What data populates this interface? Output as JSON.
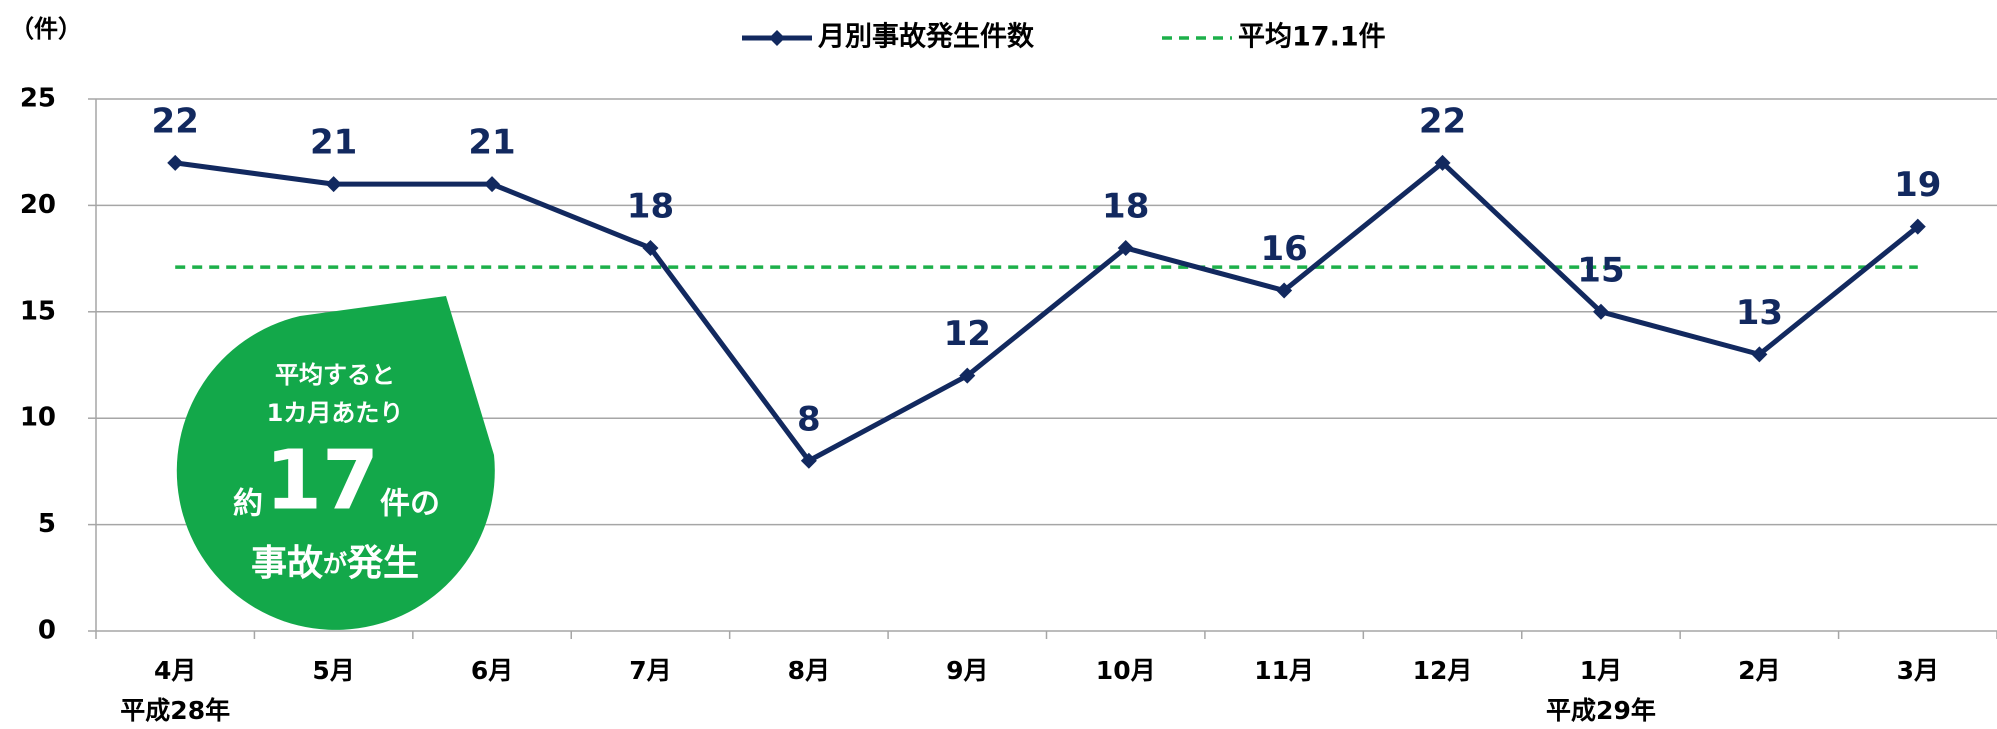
{
  "chart_data": {
    "type": "line",
    "y_label": "（件）",
    "categories": [
      "4月",
      "5月",
      "6月",
      "7月",
      "8月",
      "9月",
      "10月",
      "11月",
      "12月",
      "1月",
      "2月",
      "3月"
    ],
    "x_sublabels": [
      "平成28年",
      null,
      null,
      null,
      null,
      null,
      null,
      null,
      null,
      "平成29年",
      null,
      null
    ],
    "series": [
      {
        "name": "月別事故発生件数",
        "color": "#12295f",
        "values": [
          22,
          21,
          21,
          18,
          8,
          12,
          18,
          16,
          22,
          15,
          13,
          19
        ]
      }
    ],
    "average": {
      "name": "平均17.1件",
      "color": "#1db04a",
      "value": 17.1
    },
    "ylim": [
      0,
      25
    ],
    "yticks": [
      0,
      5,
      10,
      15,
      20,
      25
    ],
    "grid": true,
    "annotation": {
      "color": "#13a84a",
      "line1": "平均すると",
      "line2": "1カ月あたり",
      "prefix": "約",
      "number": "17",
      "suffix": "件の",
      "word1": "事故",
      "particle": "が",
      "word2": "発生"
    }
  }
}
